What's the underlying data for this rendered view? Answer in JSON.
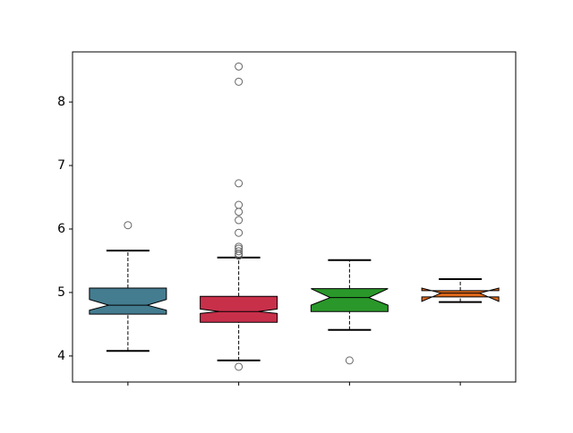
{
  "chart_data": {
    "type": "boxplot",
    "categories": [
      null,
      null,
      null,
      null
    ],
    "ylim": [
      3.59,
      8.79
    ],
    "yticks": [
      4,
      5,
      6,
      7,
      8
    ],
    "notch": true,
    "boxes": [
      {
        "color": "#447c90",
        "whisker_low": 4.08,
        "q1": 4.66,
        "median": 4.8,
        "q3": 5.07,
        "whisker_high": 5.66,
        "notch_low": 4.72,
        "notch_high": 4.89,
        "outliers": [
          6.06
        ]
      },
      {
        "color": "#c8304a",
        "whisker_low": 3.93,
        "q1": 4.53,
        "median": 4.7,
        "q3": 4.94,
        "whisker_high": 5.55,
        "notch_low": 4.67,
        "notch_high": 4.74,
        "outliers": [
          3.83,
          8.56,
          8.32,
          6.72,
          6.38,
          6.27,
          6.14,
          5.94,
          5.72,
          5.69,
          5.65,
          5.61,
          5.58
        ]
      },
      {
        "color": "#2a972a",
        "whisker_low": 4.41,
        "q1": 4.7,
        "median": 4.92,
        "q3": 5.06,
        "whisker_high": 5.51,
        "notch_low": 4.8,
        "notch_high": 5.06,
        "outliers": [
          3.93
        ]
      },
      {
        "color": "#e06a1c",
        "whisker_low": 4.85,
        "q1": 4.93,
        "median": 4.99,
        "q3": 5.03,
        "whisker_high": 5.21,
        "notch_low": 4.86,
        "notch_high": 5.07,
        "outliers": []
      }
    ]
  }
}
